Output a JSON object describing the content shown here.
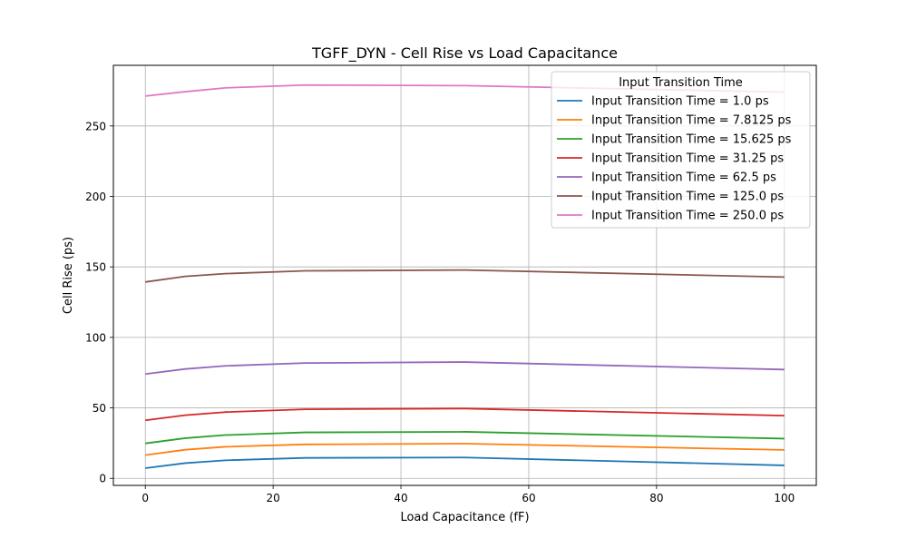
{
  "chart_data": {
    "type": "line",
    "title": "TGFF_DYN - Cell Rise vs Load Capacitance",
    "xlabel": "Load Capacitance (fF)",
    "ylabel": "Cell Rise (ps)",
    "xlim": [
      -5,
      105
    ],
    "ylim": [
      -5,
      293
    ],
    "xticks": [
      0,
      20,
      40,
      60,
      80,
      100
    ],
    "yticks": [
      0,
      50,
      100,
      150,
      200,
      250
    ],
    "grid": true,
    "legend_title": "Input Transition Time",
    "legend_position": "top-right",
    "x": [
      0,
      6.25,
      12.5,
      25,
      50,
      100
    ],
    "series": [
      {
        "name": "Input Transition Time = 1.0 ps",
        "color": "#1f77b4",
        "values": [
          7.2,
          10.8,
          12.8,
          14.5,
          14.8,
          9.2
        ]
      },
      {
        "name": "Input Transition Time = 7.8125 ps",
        "color": "#ff7f0e",
        "values": [
          16.5,
          20.3,
          22.4,
          24.1,
          24.6,
          20.2
        ]
      },
      {
        "name": "Input Transition Time = 15.625 ps",
        "color": "#2ca02c",
        "values": [
          24.8,
          28.5,
          30.7,
          32.6,
          33.0,
          28.2
        ]
      },
      {
        "name": "Input Transition Time = 31.25 ps",
        "color": "#d62728",
        "values": [
          41.2,
          44.8,
          47.0,
          49.0,
          49.5,
          44.5
        ]
      },
      {
        "name": "Input Transition Time = 62.5 ps",
        "color": "#9467bd",
        "values": [
          74.0,
          77.6,
          79.8,
          81.8,
          82.5,
          77.2
        ]
      },
      {
        "name": "Input Transition Time = 125.0 ps",
        "color": "#8c564b",
        "values": [
          139.3,
          143.3,
          145.2,
          147.2,
          147.8,
          142.8
        ]
      },
      {
        "name": "Input Transition Time = 250.0 ps",
        "color": "#e377c2",
        "values": [
          271.2,
          274.3,
          277.0,
          279.0,
          278.6,
          274.0
        ]
      }
    ]
  }
}
